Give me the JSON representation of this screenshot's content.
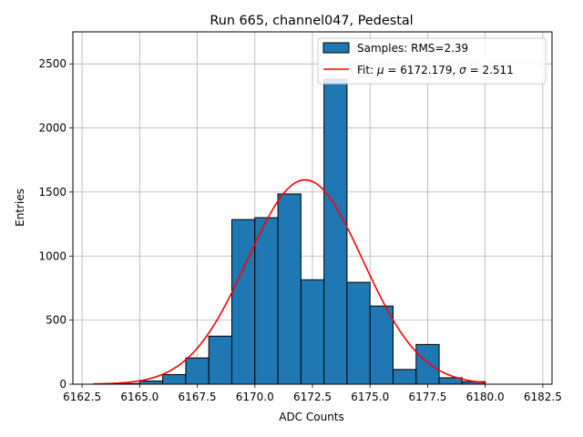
{
  "chart_data": {
    "type": "bar",
    "title": "Run 665, channel047, Pedestal",
    "xlabel": "ADC Counts",
    "ylabel": "Entries",
    "xlim": [
      6162.1,
      6182.9
    ],
    "ylim": [
      0,
      2750
    ],
    "xticks": [
      6162.5,
      6165.0,
      6167.5,
      6170.0,
      6172.5,
      6175.0,
      6177.5,
      6180.0,
      6182.5
    ],
    "xtick_labels": [
      "6162.5",
      "6165.0",
      "6167.5",
      "6170.0",
      "6172.5",
      "6175.0",
      "6177.5",
      "6180.0",
      "6182.5"
    ],
    "yticks": [
      0,
      500,
      1000,
      1500,
      2000,
      2500
    ],
    "ytick_labels": [
      "0",
      "500",
      "1000",
      "1500",
      "2000",
      "2500"
    ],
    "grid": true,
    "legend_position": "top-right",
    "histogram": {
      "name": "Samples: RMS=2.39",
      "color": "#1f77b4",
      "edgecolor": "#000000",
      "bin_edges": [
        6163,
        6164,
        6165,
        6166,
        6167,
        6168,
        6169,
        6170,
        6171,
        6172,
        6173,
        6174,
        6175,
        6176,
        6177,
        6178,
        6179,
        6180
      ],
      "counts": [
        0,
        5,
        25,
        75,
        205,
        375,
        1285,
        1300,
        1485,
        815,
        2380,
        795,
        610,
        115,
        310,
        50,
        20
      ]
    },
    "fit": {
      "name_prefix": "Fit: ",
      "name_mu_symbol": "μ",
      "name_mu_text": " = 6172.179, ",
      "name_sigma_symbol": "σ",
      "name_sigma_text": " = 2.511",
      "color": "#ff0000",
      "mu": 6172.179,
      "sigma": 2.511,
      "amplitude": 1595,
      "x_range": [
        6163,
        6180
      ]
    }
  }
}
